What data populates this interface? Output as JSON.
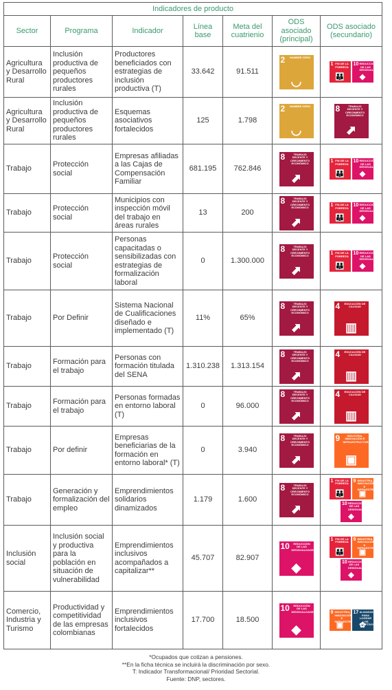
{
  "caption": "Indicadores de producto",
  "headers": {
    "sector": "Sector",
    "programa": "Programa",
    "indicador": "Indicador",
    "linea_base": "Línea base",
    "meta": "Meta del cuatrienio",
    "ods_principal": "ODS asociado (principal)",
    "ods_secundario": "ODS asociado (secundario)"
  },
  "sdg_goals": {
    "g1": {
      "number": "1",
      "title": "FIN DE LA POBREZA",
      "color": "#e5243b",
      "icon": "family-icon"
    },
    "g2": {
      "number": "2",
      "title": "HAMBRE CERO",
      "color": "#dda63a",
      "icon": "bowl-icon"
    },
    "g4": {
      "number": "4",
      "title": "EDUCACIÓN DE CALIDAD",
      "color": "#c5192d",
      "icon": "book-icon"
    },
    "g8": {
      "number": "8",
      "title": "TRABAJO DECENTE Y CRECIMIENTO ECONÓMICO",
      "color": "#a21942",
      "icon": "growth-chart-icon"
    },
    "g9": {
      "number": "9",
      "title": "INDUSTRIA, INNOVACIÓN E INFRAESTRUCTURA",
      "color": "#fd6925",
      "icon": "cubes-icon"
    },
    "g10": {
      "number": "10",
      "title": "REDUCCIÓN DE LAS DESIGUALDADES",
      "color": "#dd1367",
      "icon": "equality-icon"
    },
    "g17": {
      "number": "17",
      "title": "ALIANZAS PARA LOGRAR LOS OBJETIVOS",
      "color": "#19486a",
      "icon": "partnership-icon"
    }
  },
  "rows": [
    {
      "sector": "Agricultura y Desarrollo Rural",
      "programa": "Inclusión productiva de pequeños productores rurales",
      "indicador": "Productores beneficiados con estrategias de inclusión productiva (T)",
      "linea_base": "33.642",
      "meta": "91.511",
      "principal": [
        "g2"
      ],
      "secundario": [
        "g1",
        "g10"
      ]
    },
    {
      "sector": "Agricultura y Desarrollo Rural",
      "programa": "Inclusión productiva de pequeños productores rurales",
      "indicador": "Esquemas asociativos fortalecidos",
      "linea_base": "125",
      "meta": "1.798",
      "principal": [
        "g2"
      ],
      "secundario": [
        "g8"
      ]
    },
    {
      "sector": "Trabajo",
      "programa": "Protección social",
      "indicador": "Empresas afiliadas a las Cajas de Compensación Familiar",
      "linea_base": "681.195",
      "meta": "762.846",
      "principal": [
        "g8"
      ],
      "secundario": [
        "g1",
        "g10"
      ]
    },
    {
      "sector": "Trabajo",
      "programa": "Protección social",
      "indicador": "Municipios con inspección móvil del trabajo en áreas rurales",
      "linea_base": "13",
      "meta": "200",
      "principal": [
        "g8"
      ],
      "secundario": [
        "g1",
        "g10"
      ]
    },
    {
      "sector": "Trabajo",
      "programa": "Protección social",
      "indicador": "Personas capacitadas o sensibilizadas con estrategias de formalización laboral",
      "linea_base": "0",
      "meta": "1.300.000",
      "principal": [
        "g8"
      ],
      "secundario": [
        "g1",
        "g10"
      ]
    },
    {
      "sector": "Trabajo",
      "programa": "Por Definir",
      "indicador": "Sistema Nacional de Cualificaciones diseñado e implementado (T)",
      "linea_base": "11%",
      "meta": "65%",
      "principal": [
        "g8"
      ],
      "secundario": [
        "g4"
      ]
    },
    {
      "sector": "Trabajo",
      "programa": "Formación para el trabajo",
      "indicador": "Personas con formación titulada del SENA",
      "linea_base": "1.310.238",
      "meta": "1.313.154",
      "principal": [
        "g8"
      ],
      "secundario": [
        "g4"
      ]
    },
    {
      "sector": "Trabajo",
      "programa": "Formación para el trabajo",
      "indicador": "Personas formadas en entorno laboral (T)",
      "linea_base": "0",
      "meta": "96.000",
      "principal": [
        "g8"
      ],
      "secundario": [
        "g4"
      ]
    },
    {
      "sector": "Trabajo",
      "programa": "Por definir",
      "indicador": "Empresas beneficiarias de la formación en entorno laboral* (T)",
      "linea_base": "0",
      "meta": "3.940",
      "principal": [
        "g8"
      ],
      "secundario": [
        "g9"
      ]
    },
    {
      "sector": "Trabajo",
      "programa": "Generación y formalización del empleo",
      "indicador": "Emprendimientos solidarios dinamizados",
      "linea_base": "1.179",
      "meta": "1.600",
      "principal": [
        "g8"
      ],
      "secundario": [
        "g1",
        "g9",
        "g10"
      ]
    },
    {
      "sector": "Inclusión social",
      "programa": "Inclusión social y productiva para la población en situación de vulnerabilidad",
      "indicador": "Emprendimientos inclusivos acompañados a capitalizar**",
      "linea_base": "45.707",
      "meta": "82.907",
      "principal": [
        "g10"
      ],
      "secundario": [
        "g1",
        "g9",
        "g10"
      ]
    },
    {
      "sector": "Comercio, Industria y Turismo",
      "programa": "Productividad y competitividad de las empresas colombianas",
      "indicador": "Emprendimientos inclusivos fortalecidos",
      "linea_base": "17.700",
      "meta": "18.500",
      "principal": [
        "g10"
      ],
      "secundario": [
        "g9",
        "g17"
      ]
    }
  ],
  "notes": [
    "*Ocupados que cotizan a pensiones.",
    "**En la ficha técnica se incluirá la discriminación por sexo.",
    "T: Indicador Transformacional/ Prioridad Sectorial.",
    "Fuente: DNP, sectores."
  ]
}
